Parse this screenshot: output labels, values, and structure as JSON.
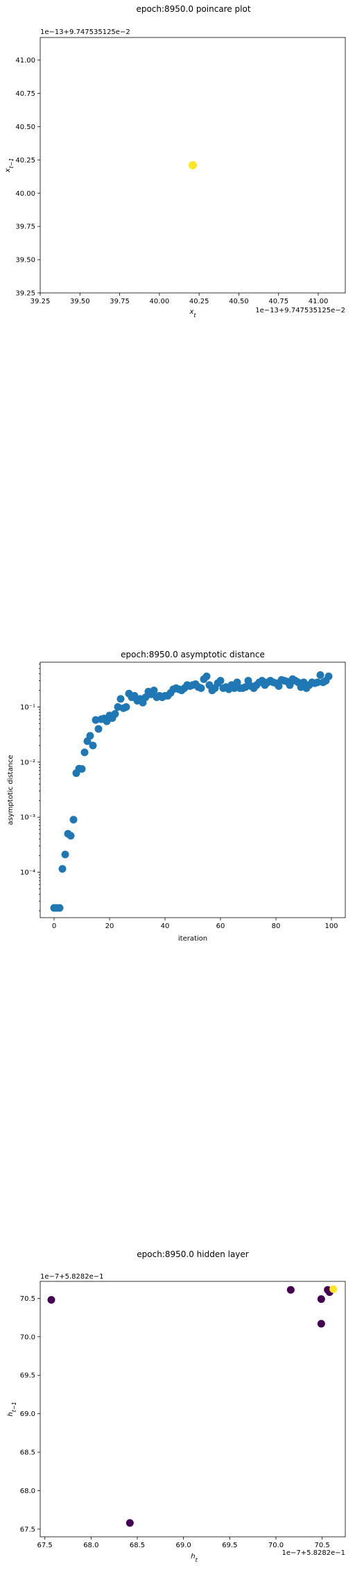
{
  "chart_data": [
    {
      "type": "scatter",
      "title": "epoch:8950.0 poincare plot",
      "xlabel": "x_t",
      "ylabel": "x_{t-1}",
      "x_offset_text": "1e−13+9.747535125e−2",
      "y_offset_text": "1e−13+9.747535125e−2",
      "xlim": [
        39.25,
        41.17
      ],
      "ylim": [
        39.25,
        41.17
      ],
      "xticks": [
        "39.25",
        "39.50",
        "39.75",
        "40.00",
        "40.25",
        "40.50",
        "40.75",
        "41.00"
      ],
      "yticks": [
        "39.25",
        "39.50",
        "39.75",
        "40.00",
        "40.25",
        "40.50",
        "40.75",
        "41.00"
      ],
      "tick_values": [
        39.25,
        39.5,
        39.75,
        40.0,
        40.25,
        40.5,
        40.75,
        41.0
      ],
      "grid": false,
      "points": [
        {
          "x": 40.21,
          "y": 40.21,
          "color": "#fde725"
        }
      ]
    },
    {
      "type": "scatter",
      "title": "epoch:8950.0 asymptotic distance",
      "xlabel": "iteration",
      "ylabel": "asymptotic distance",
      "yscale": "log",
      "xlim": [
        -5,
        105
      ],
      "ylim": [
        1.5e-05,
        0.65
      ],
      "xticks": [
        "0",
        "20",
        "40",
        "60",
        "80",
        "100"
      ],
      "xtick_values": [
        0,
        20,
        40,
        60,
        80,
        100
      ],
      "yticks": [
        "10⁻⁴",
        "10⁻³",
        "10⁻²",
        "10⁻¹"
      ],
      "ytick_values": [
        0.0001,
        0.001,
        0.01,
        0.1
      ],
      "color": "#1f77b4",
      "grid": false,
      "x": [
        0,
        1,
        2,
        3,
        4,
        5,
        6,
        7,
        8,
        9,
        10,
        11,
        12,
        13,
        14,
        15,
        16,
        17,
        18,
        19,
        20,
        21,
        22,
        23,
        24,
        25,
        26,
        27,
        28,
        29,
        30,
        31,
        32,
        33,
        34,
        35,
        36,
        37,
        38,
        39,
        40,
        41,
        42,
        43,
        44,
        45,
        46,
        47,
        48,
        49,
        50,
        51,
        52,
        53,
        54,
        55,
        56,
        57,
        58,
        59,
        60,
        61,
        62,
        63,
        64,
        65,
        66,
        67,
        68,
        69,
        70,
        71,
        72,
        73,
        74,
        75,
        76,
        77,
        78,
        79,
        80,
        81,
        82,
        83,
        84,
        85,
        86,
        87,
        88,
        89,
        90,
        91,
        92,
        93,
        94,
        95,
        96,
        97,
        98,
        99
      ],
      "y": [
        2.25e-05,
        2.25e-05,
        2.25e-05,
        0.000115,
        0.00021,
        0.0005,
        0.00046,
        0.0009,
        0.0063,
        0.0076,
        0.0075,
        0.015,
        0.024,
        0.03,
        0.02,
        0.058,
        0.04,
        0.06,
        0.062,
        0.055,
        0.07,
        0.063,
        0.075,
        0.1,
        0.14,
        0.095,
        0.1,
        0.175,
        0.15,
        0.16,
        0.13,
        0.14,
        0.12,
        0.15,
        0.19,
        0.17,
        0.2,
        0.15,
        0.16,
        0.15,
        0.16,
        0.16,
        0.18,
        0.21,
        0.22,
        0.21,
        0.2,
        0.22,
        0.25,
        0.24,
        0.25,
        0.26,
        0.23,
        0.22,
        0.32,
        0.36,
        0.25,
        0.2,
        0.22,
        0.27,
        0.3,
        0.22,
        0.23,
        0.21,
        0.25,
        0.22,
        0.28,
        0.22,
        0.22,
        0.23,
        0.3,
        0.24,
        0.22,
        0.25,
        0.28,
        0.3,
        0.25,
        0.28,
        0.3,
        0.28,
        0.27,
        0.24,
        0.31,
        0.3,
        0.29,
        0.25,
        0.32,
        0.3,
        0.28,
        0.23,
        0.28,
        0.22,
        0.25,
        0.28,
        0.27,
        0.28,
        0.38,
        0.28,
        0.3,
        0.36
      ]
    },
    {
      "type": "scatter",
      "title": "epoch:8950.0 hidden layer",
      "xlabel": "h_t",
      "ylabel": "h_{t-1}",
      "x_offset_text": "1e−7+5.8282e−1",
      "y_offset_text": "1e−7+5.8282e−1",
      "xlim": [
        67.45,
        70.75
      ],
      "ylim": [
        67.4,
        70.72
      ],
      "xticks": [
        "67.5",
        "68.0",
        "68.5",
        "69.0",
        "69.5",
        "70.0",
        "70.5"
      ],
      "xtick_values": [
        67.5,
        68.0,
        68.5,
        69.0,
        69.5,
        70.0,
        70.5
      ],
      "yticks": [
        "67.5",
        "68.0",
        "68.5",
        "69.0",
        "69.5",
        "70.0",
        "70.5"
      ],
      "ytick_values": [
        67.5,
        68.0,
        68.5,
        69.0,
        69.5,
        70.0,
        70.5
      ],
      "grid": false,
      "points": [
        {
          "x": 67.57,
          "y": 70.48,
          "color": "#440154"
        },
        {
          "x": 68.42,
          "y": 67.58,
          "color": "#440154"
        },
        {
          "x": 70.16,
          "y": 70.61,
          "color": "#440154"
        },
        {
          "x": 70.49,
          "y": 70.49,
          "color": "#440154"
        },
        {
          "x": 70.49,
          "y": 70.17,
          "color": "#440154"
        },
        {
          "x": 70.58,
          "y": 70.58,
          "color": "#440154"
        },
        {
          "x": 70.56,
          "y": 70.61,
          "color": "#440154"
        },
        {
          "x": 70.62,
          "y": 70.62,
          "color": "#fde725"
        }
      ]
    }
  ]
}
